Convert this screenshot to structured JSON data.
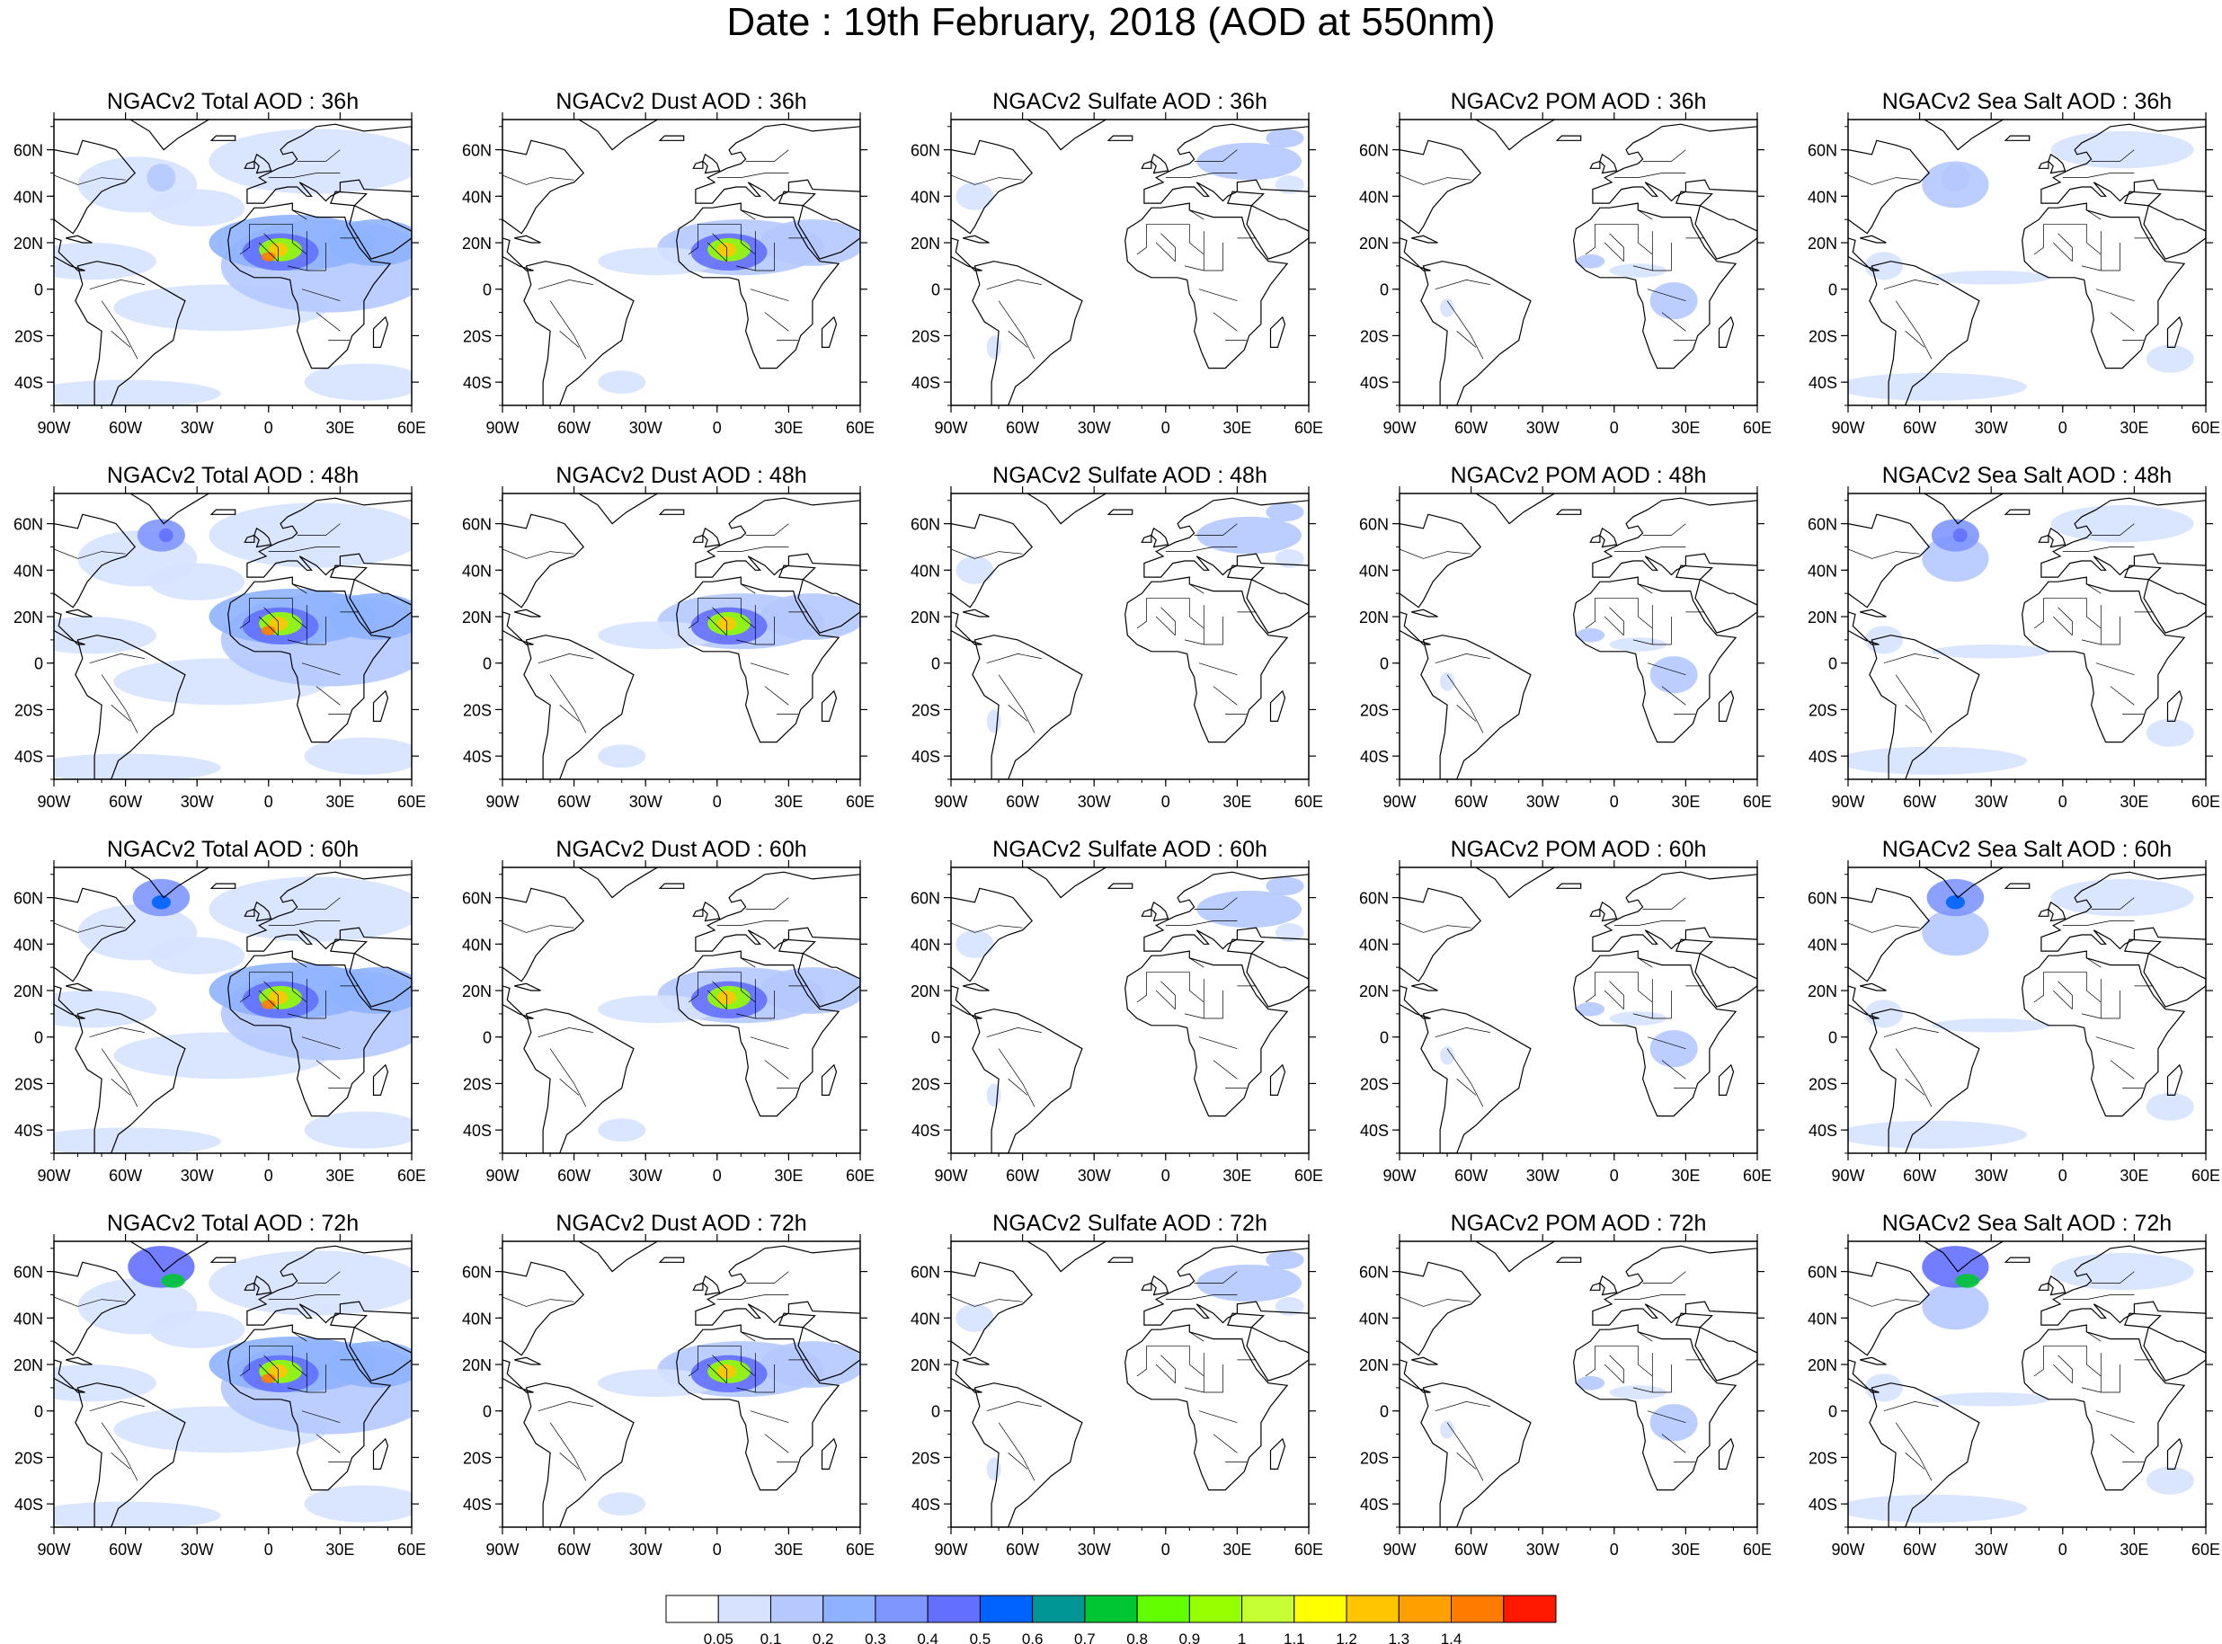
{
  "title": "Date : 19th February, 2018 (AOD at 550nm)",
  "row_titles": [
    [
      "NGACv2 Total AOD : 36h",
      "NGACv2 Dust AOD : 36h",
      "NGACv2 Sulfate AOD : 36h",
      "NGACv2 POM AOD : 36h",
      "NGACv2 Sea Salt AOD : 36h"
    ],
    [
      "NGACv2 Total AOD : 48h",
      "NGACv2 Dust AOD : 48h",
      "NGACv2 Sulfate AOD : 48h",
      "NGACv2 POM AOD : 48h",
      "NGACv2 Sea Salt AOD : 48h"
    ],
    [
      "NGACv2 Total AOD : 60h",
      "NGACv2 Dust AOD : 60h",
      "NGACv2 Sulfate AOD : 60h",
      "NGACv2 POM AOD : 60h",
      "NGACv2 Sea Salt AOD : 60h"
    ],
    [
      "NGACv2 Total AOD : 72h",
      "NGACv2 Dust AOD : 72h",
      "NGACv2 Sulfate AOD : 72h",
      "NGACv2 POM AOD : 72h",
      "NGACv2 Sea Salt  AOD : 72h"
    ]
  ],
  "lat_labels": [
    "60N",
    "40N",
    "20N",
    "0",
    "20S",
    "40S"
  ],
  "lon_labels": [
    "90W",
    "60W",
    "30W",
    "0",
    "30E",
    "60E"
  ],
  "colorbar": {
    "levels": [
      "0.05",
      "0.1",
      "0.2",
      "0.3",
      "0.4",
      "0.5",
      "0.6",
      "0.7",
      "0.8",
      "0.9",
      "1",
      "1.1",
      "1.2",
      "1.3",
      "1.4"
    ],
    "colors": [
      "#ffffff",
      "#d6e2ff",
      "#b5c9ff",
      "#8eb2ff",
      "#7f96ff",
      "#6370ff",
      "#0063ff",
      "#009696",
      "#00c633",
      "#63ff00",
      "#96ff00",
      "#c6ff33",
      "#ffff00",
      "#ffc600",
      "#ffa000",
      "#ff7c00",
      "#ff1900"
    ]
  }
}
